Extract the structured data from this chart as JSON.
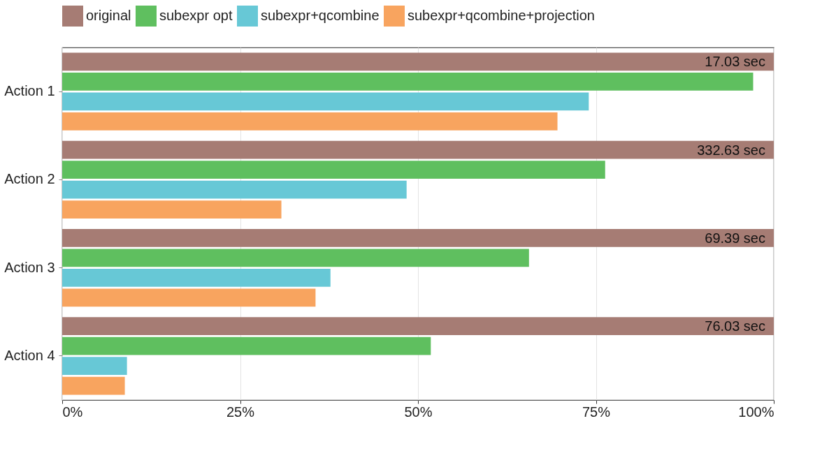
{
  "chart_data": {
    "type": "bar",
    "orientation": "horizontal",
    "categories": [
      "Action 1",
      "Action 2",
      "Action 3",
      "Action 4"
    ],
    "series": [
      {
        "name": "original",
        "color": "#a67c74",
        "values": [
          100,
          100,
          100,
          100
        ]
      },
      {
        "name": "subexpr opt",
        "color": "#5fbf5f",
        "values": [
          97.1,
          76.3,
          65.6,
          51.8
        ]
      },
      {
        "name": "subexpr+qcombine",
        "color": "#67c8d6",
        "values": [
          74.0,
          48.4,
          37.7,
          9.1
        ]
      },
      {
        "name": "subexpr+qcombine+projection",
        "color": "#f8a45f",
        "values": [
          69.6,
          30.8,
          35.6,
          8.8
        ]
      }
    ],
    "xlim": [
      0,
      100
    ],
    "xticks": [
      {
        "value": 0,
        "label": "0%"
      },
      {
        "value": 25,
        "label": "25%"
      },
      {
        "value": 50,
        "label": "50%"
      },
      {
        "value": 75,
        "label": "75%"
      },
      {
        "value": 100,
        "label": "100%"
      }
    ],
    "grid": "x",
    "legend": "top",
    "annotations": [
      "17.03 sec",
      "332.63 sec",
      "69.39 sec",
      "76.03 sec"
    ]
  }
}
